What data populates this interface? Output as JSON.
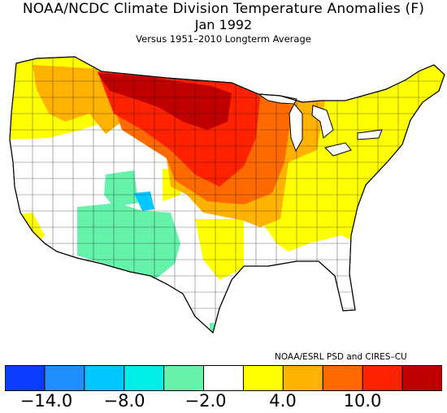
{
  "title": "NOAA/NCDC Climate Division Temperature Anomalies (F)",
  "period": "Jan 1992",
  "subtitle": "Versus 1951–2010 Longterm Average",
  "credit": "NOAA/ESRL PSD and CIRES–CU",
  "legend": {
    "colors": [
      "#0b3cff",
      "#1e8fff",
      "#00c8ff",
      "#00ece6",
      "#66f2aa",
      "#ffffff",
      "#ffff00",
      "#ffb200",
      "#ff6a00",
      "#ff2200",
      "#c00000"
    ],
    "tick_labels": [
      "−14.0",
      "−8.0",
      "−2.0",
      "4.0",
      "10.0"
    ]
  }
}
